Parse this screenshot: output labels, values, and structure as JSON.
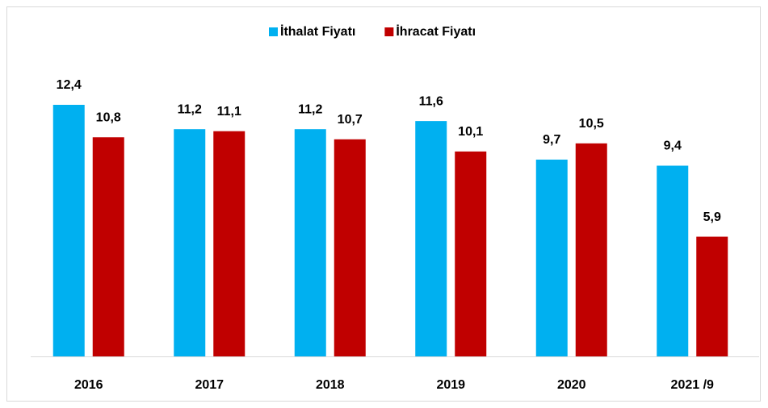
{
  "chart_data": {
    "type": "bar",
    "categories": [
      "2016",
      "2017",
      "2018",
      "2019",
      "2020",
      "2021 /9"
    ],
    "series": [
      {
        "name": "İthalat Fiyatı",
        "color": "#00b0f0",
        "values": [
          12.4,
          11.2,
          11.2,
          11.6,
          9.7,
          9.4
        ],
        "value_labels": [
          "12,4",
          "11,2",
          "11,2",
          "11,6",
          "9,7",
          "9,4"
        ]
      },
      {
        "name": "İhracat Fiyatı",
        "color": "#c00000",
        "values": [
          10.8,
          11.1,
          10.7,
          10.1,
          10.5,
          5.9
        ],
        "value_labels": [
          "10,8",
          "11,1",
          "10,7",
          "10,1",
          "10,5",
          "5,9"
        ]
      }
    ],
    "legend": "top"
  }
}
